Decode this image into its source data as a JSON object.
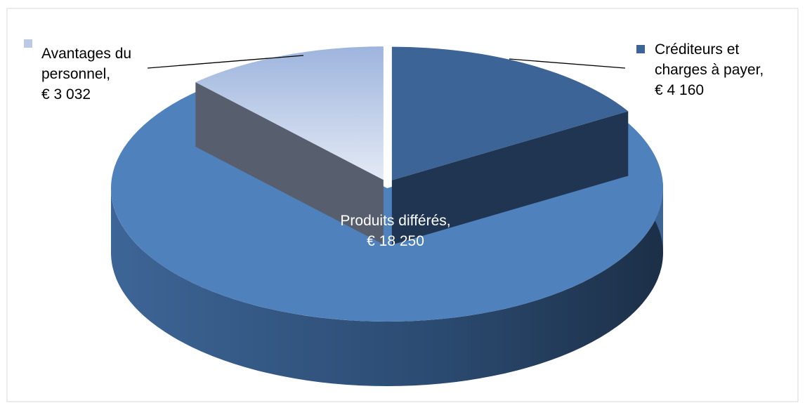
{
  "chart_data": {
    "type": "pie",
    "categories": [
      "Créditeurs et charges à payer,",
      "Produits différés,",
      "Avantages du personnel,"
    ],
    "values": [
      4160,
      18250,
      3032
    ],
    "value_labels": [
      "€ 4 160",
      "€ 18 250",
      "€ 3 032"
    ],
    "colors": [
      "#3c6496",
      "#4f81bd",
      "#b9c9e6"
    ],
    "legend": true
  }
}
